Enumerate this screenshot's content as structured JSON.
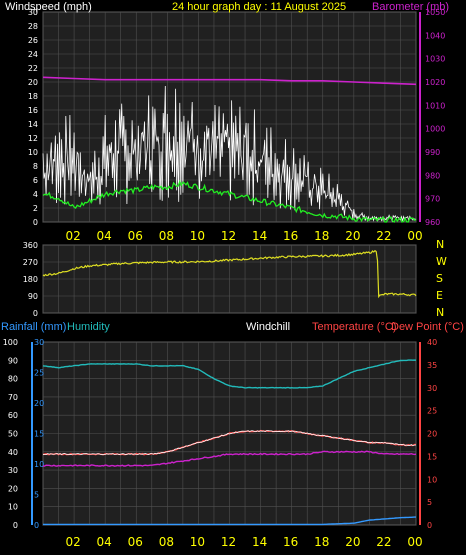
{
  "page": {
    "title": "24 hour graph day : 11 August 2025",
    "colors": {
      "background": "#000000",
      "plot_background": "#202020",
      "grid": "#505050",
      "windspeed": "#ffffff",
      "wind_gust_avg": "#22ee22",
      "barometer": "#cc22cc",
      "direction": "#dddd22",
      "humidity": "#22bbbb",
      "temperature": "#ff4444",
      "dewpoint": "#cc22cc",
      "rainfall": "#3399ff",
      "axis_text": "#ffffff",
      "time_axis_text": "#ffff00"
    }
  },
  "chart_data": [
    {
      "type": "line",
      "name": "wind-barometer",
      "left_label": "Windspeed (mph)",
      "right_label": "Barometer (mb)",
      "left_ticks": [
        0,
        2,
        4,
        6,
        8,
        10,
        12,
        14,
        16,
        18,
        20,
        22,
        24,
        26,
        28,
        30
      ],
      "right_ticks": [
        960,
        970,
        980,
        990,
        1000,
        1010,
        1020,
        1030,
        1040,
        1050
      ],
      "ylim_left": [
        0,
        30
      ],
      "ylim_right": [
        960,
        1050
      ],
      "x_ticks": [
        "02",
        "04",
        "06",
        "08",
        "10",
        "12",
        "14",
        "16",
        "18",
        "20",
        "22",
        "00"
      ],
      "x_range_hours": [
        0,
        24
      ],
      "series": [
        {
          "name": "Windspeed",
          "axis": "left",
          "x": [
            0,
            1,
            2,
            3,
            4,
            5,
            6,
            7,
            8,
            9,
            10,
            11,
            12,
            13,
            14,
            15,
            16,
            17,
            18,
            19,
            20,
            21,
            22,
            23,
            24
          ],
          "y": [
            7,
            8,
            8,
            5,
            8,
            9,
            9,
            10,
            11,
            11,
            10,
            9,
            9,
            9,
            8,
            7,
            6,
            5,
            4,
            3,
            1,
            0.5,
            0.5,
            0.5,
            0.5
          ]
        },
        {
          "name": "Wind average",
          "axis": "left",
          "x": [
            0,
            1,
            2,
            3,
            4,
            5,
            6,
            7,
            8,
            9,
            10,
            11,
            12,
            13,
            14,
            15,
            16,
            17,
            18,
            19,
            20,
            21,
            22,
            23,
            24
          ],
          "y": [
            4,
            3.5,
            2,
            3,
            4,
            4.5,
            4.5,
            5,
            5,
            5.5,
            5,
            4.5,
            4,
            3.5,
            3,
            2.5,
            2,
            1.5,
            1,
            0.8,
            0.5,
            0.3,
            0.3,
            0.3,
            0.3
          ]
        },
        {
          "name": "Barometer",
          "axis": "right",
          "x": [
            0,
            2,
            4,
            6,
            8,
            10,
            12,
            14,
            16,
            18,
            20,
            22,
            24
          ],
          "y": [
            1022,
            1021.5,
            1021,
            1021,
            1021,
            1021,
            1021,
            1021,
            1020.5,
            1020.5,
            1020,
            1019.5,
            1019
          ]
        }
      ]
    },
    {
      "type": "line",
      "name": "wind-direction",
      "left_ticks": [
        0,
        90,
        180,
        270,
        360
      ],
      "compass_labels": [
        "N",
        "W",
        "S",
        "E",
        "N"
      ],
      "ylim": [
        0,
        360
      ],
      "series": [
        {
          "name": "Wind direction",
          "x": [
            0,
            1,
            2,
            3,
            4,
            5,
            6,
            7,
            8,
            9,
            10,
            11,
            12,
            13,
            14,
            15,
            16,
            17,
            18,
            19,
            20,
            21,
            21.5,
            21.6,
            22,
            23,
            24
          ],
          "y": [
            200,
            210,
            235,
            250,
            255,
            262,
            265,
            268,
            270,
            270,
            272,
            275,
            280,
            285,
            290,
            295,
            298,
            300,
            302,
            305,
            310,
            320,
            330,
            90,
            100,
            100,
            95
          ]
        }
      ]
    },
    {
      "type": "line",
      "name": "temp-humidity-rain",
      "labels": {
        "rainfall": "Rainfall (mm)",
        "humidity": "Humidity",
        "windchill": "Windchill",
        "temperature": "Temperature (°C)",
        "dewpoint": "Dew Point (°C)"
      },
      "humidity_ticks": [
        0,
        10,
        20,
        30,
        40,
        50,
        60,
        70,
        80,
        90,
        100
      ],
      "rain_ticks": [
        0,
        5,
        10,
        15,
        20,
        25,
        30
      ],
      "temp_ticks": [
        0,
        5,
        10,
        15,
        20,
        25,
        30,
        35,
        40
      ],
      "ylim_humidity": [
        0,
        100
      ],
      "ylim_rain": [
        0,
        30
      ],
      "ylim_temp": [
        0,
        40
      ],
      "series": [
        {
          "name": "Humidity",
          "axis": "humidity",
          "x": [
            0,
            1,
            2,
            3,
            4,
            5,
            6,
            7,
            8,
            9,
            10,
            11,
            12,
            13,
            14,
            15,
            16,
            17,
            18,
            19,
            20,
            21,
            22,
            23,
            24
          ],
          "y": [
            87,
            86,
            87,
            88,
            88,
            88,
            88,
            87,
            87,
            87,
            85,
            80,
            76,
            75,
            75,
            75,
            75,
            75,
            76,
            80,
            84,
            86,
            88,
            90,
            90
          ]
        },
        {
          "name": "Temperature",
          "axis": "temp",
          "x": [
            0,
            1,
            2,
            3,
            4,
            5,
            6,
            7,
            8,
            9,
            10,
            11,
            12,
            13,
            14,
            15,
            16,
            17,
            18,
            19,
            20,
            21,
            22,
            23,
            24
          ],
          "y": [
            15.5,
            15.5,
            15.5,
            15.5,
            15.5,
            15.5,
            15.5,
            15.5,
            16,
            17,
            18,
            19,
            20,
            20.5,
            20.5,
            20.5,
            20.5,
            20,
            19.5,
            19,
            18.5,
            18,
            18,
            17.5,
            17.5
          ]
        },
        {
          "name": "Windchill",
          "axis": "temp",
          "x": [
            0,
            1,
            2,
            3,
            4,
            5,
            6,
            7,
            8,
            9,
            10,
            11,
            12,
            13,
            14,
            15,
            16,
            17,
            18,
            19,
            20,
            21,
            22,
            23,
            24
          ],
          "y": [
            15.5,
            15.5,
            15.5,
            15.5,
            15.5,
            15.5,
            15.5,
            15.5,
            16,
            17,
            18,
            19,
            20,
            20.5,
            20.5,
            20.5,
            20.5,
            20,
            19.5,
            19,
            18.5,
            18,
            18,
            17.5,
            17.5
          ]
        },
        {
          "name": "Dew Point",
          "axis": "temp",
          "x": [
            0,
            1,
            2,
            3,
            4,
            5,
            6,
            7,
            8,
            9,
            10,
            11,
            12,
            13,
            14,
            15,
            16,
            17,
            18,
            19,
            20,
            21,
            22,
            23,
            24
          ],
          "y": [
            13,
            13,
            13,
            13,
            13,
            13,
            13,
            13,
            13.5,
            14,
            14.5,
            15,
            15.5,
            15.5,
            15.5,
            15.5,
            15.5,
            15.5,
            16,
            16,
            16,
            16,
            15.5,
            15.5,
            15.5
          ]
        },
        {
          "name": "Rainfall",
          "axis": "rain",
          "x": [
            0,
            2,
            4,
            6,
            8,
            10,
            12,
            14,
            16,
            18,
            20,
            21,
            22,
            23,
            24
          ],
          "y": [
            0.1,
            0.1,
            0.1,
            0.1,
            0.1,
            0.1,
            0.1,
            0.1,
            0.1,
            0.1,
            0.3,
            0.8,
            1,
            1.2,
            1.3
          ]
        }
      ],
      "x_ticks": [
        "02",
        "04",
        "06",
        "08",
        "10",
        "12",
        "14",
        "16",
        "18",
        "20",
        "22",
        "00"
      ]
    }
  ]
}
